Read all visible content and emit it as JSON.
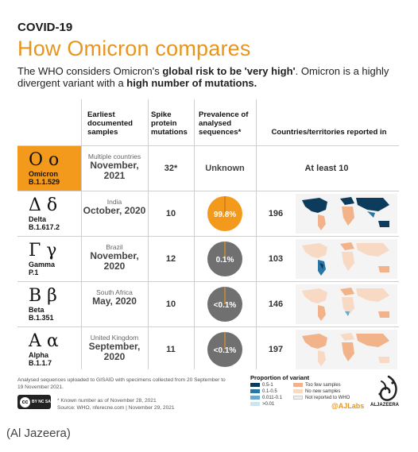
{
  "header": {
    "kicker": "COVID-19",
    "title": "How Omicron compares",
    "intro_part1": "The WHO considers Omicron's ",
    "intro_bold1": "global risk to be 'very high'",
    "intro_part2": ". Omicron is a highly divergent variant with a ",
    "intro_bold2": "high number of mutations."
  },
  "columns": {
    "earliest": "Earliest documented samples",
    "spike": "Spike protein mutations",
    "prevalence": "Prevalence of analysed sequences*",
    "countries": "Countries/territories reported in"
  },
  "variants": [
    {
      "symbol": "Ο ο",
      "name": "Omicron",
      "code": "B.1.1.529",
      "origin": "Multiple countries",
      "date": "November, 2021",
      "spike": "32*",
      "prevalence": "Unknown",
      "prevalence_value": null,
      "countries": "At least 10"
    },
    {
      "symbol": "Δ δ",
      "name": "Delta",
      "code": "B.1.617.2",
      "origin": "India",
      "date": "October, 2020",
      "spike": "10",
      "prevalence": "99.8%",
      "prevalence_value": 99.8,
      "countries": "196"
    },
    {
      "symbol": "Γ γ",
      "name": "Gamma",
      "code": "P.1",
      "origin": "Brazil",
      "date": "November, 2020",
      "spike": "12",
      "prevalence": "0.1%",
      "prevalence_value": 0.1,
      "countries": "103"
    },
    {
      "symbol": "Β β",
      "name": "Beta",
      "code": "B.1.351",
      "origin": "South Africa",
      "date": "May, 2020",
      "spike": "10",
      "prevalence": "<0.1%",
      "prevalence_value": 0.05,
      "countries": "146"
    },
    {
      "symbol": "Α α",
      "name": "Alpha",
      "code": "B.1.1.7",
      "origin": "United Kingdom",
      "date": "September, 2020",
      "spike": "11",
      "prevalence": "<0.1%",
      "prevalence_value": 0.05,
      "countries": "197"
    }
  ],
  "legend": {
    "title": "Proportion of variant",
    "items": [
      {
        "label": "0.5-1",
        "color": "#0d3b5c"
      },
      {
        "label": "0.1-0.5",
        "color": "#2a77a6"
      },
      {
        "label": "0.011-0.1",
        "color": "#6aa8cf"
      },
      {
        "label": ">0.01",
        "color": "#cfe3f0"
      },
      {
        "label": "Too few samples",
        "color": "#f2b38a"
      },
      {
        "label": "No new samples",
        "color": "#f7d9c4"
      },
      {
        "label": "Not reported to WHO",
        "color": "#eeeeee"
      }
    ]
  },
  "footer": {
    "note1": "Analysed sequences uploaded to GISAID with specimens collected from 20 September to 19 November 2021.",
    "note2": "* Known number as of November 28, 2021",
    "source": "Source: WHO, nferecne.com | November 29, 2021",
    "handle": "@AJLabs",
    "brand": "ALJAZEERA",
    "credit": "(Al Jazeera)"
  },
  "colors": {
    "accent": "#e8951c",
    "omicron_bg": "#f39a1c",
    "pie_grey": "#707070"
  }
}
